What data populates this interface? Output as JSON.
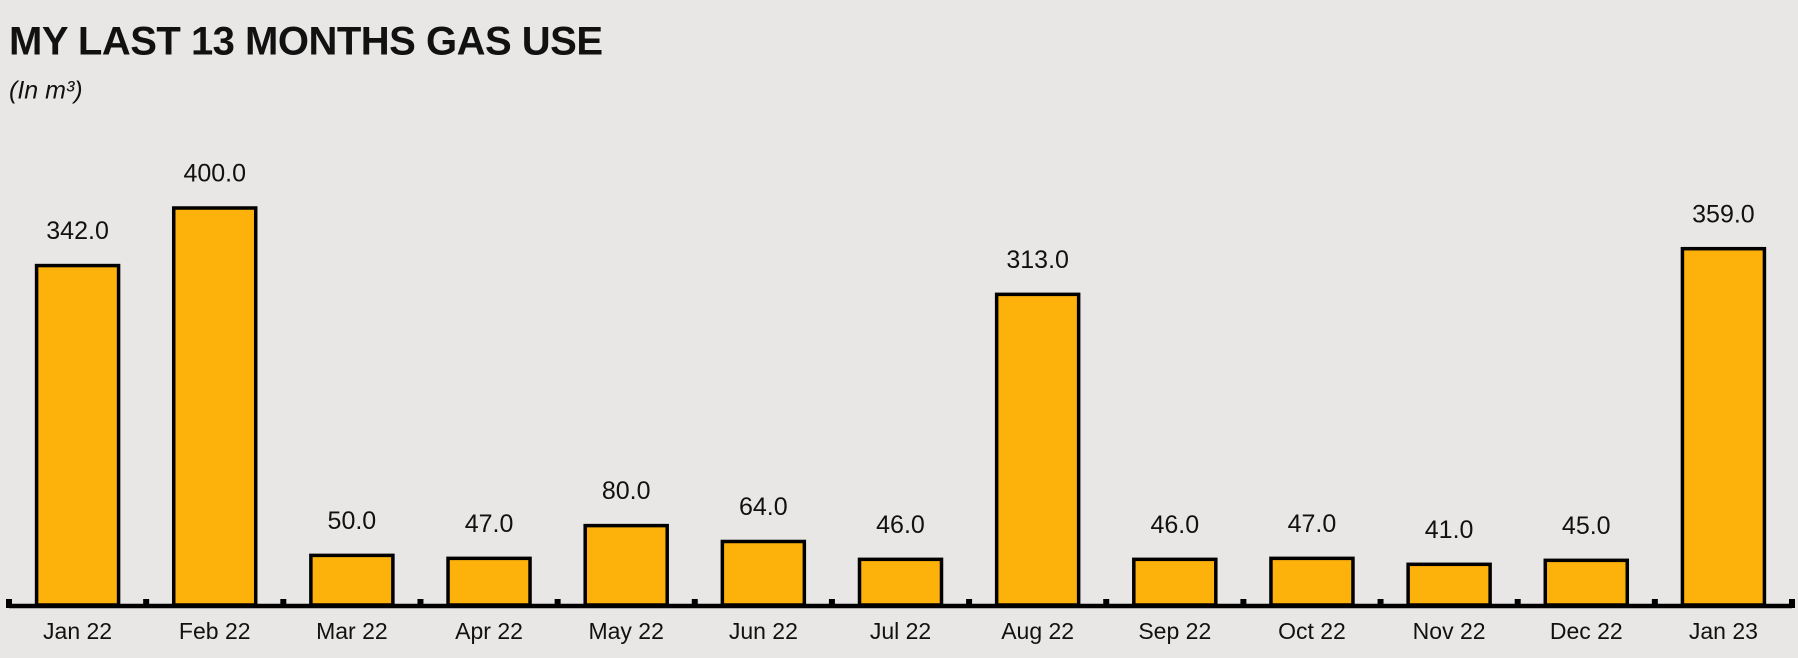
{
  "chart_data": {
    "type": "bar",
    "title": "MY LAST 13 MONTHS GAS USE",
    "subtitle": "(In m³)",
    "categories": [
      "Jan 22",
      "Feb 22",
      "Mar 22",
      "Apr 22",
      "May 22",
      "Jun 22",
      "Jul 22",
      "Aug 22",
      "Sep 22",
      "Oct 22",
      "Nov 22",
      "Dec 22",
      "Jan 23"
    ],
    "values": [
      342,
      400,
      50,
      47,
      80,
      64,
      46,
      313,
      46,
      47,
      41,
      45,
      359
    ],
    "value_labels": [
      "342.0",
      "400.0",
      "50.0",
      "47.0",
      "80.0",
      "64.0",
      "46.0",
      "313.0",
      "46.0",
      "47.0",
      "41.0",
      "45.0",
      "359.0"
    ],
    "color": "#fdb10b"
  }
}
